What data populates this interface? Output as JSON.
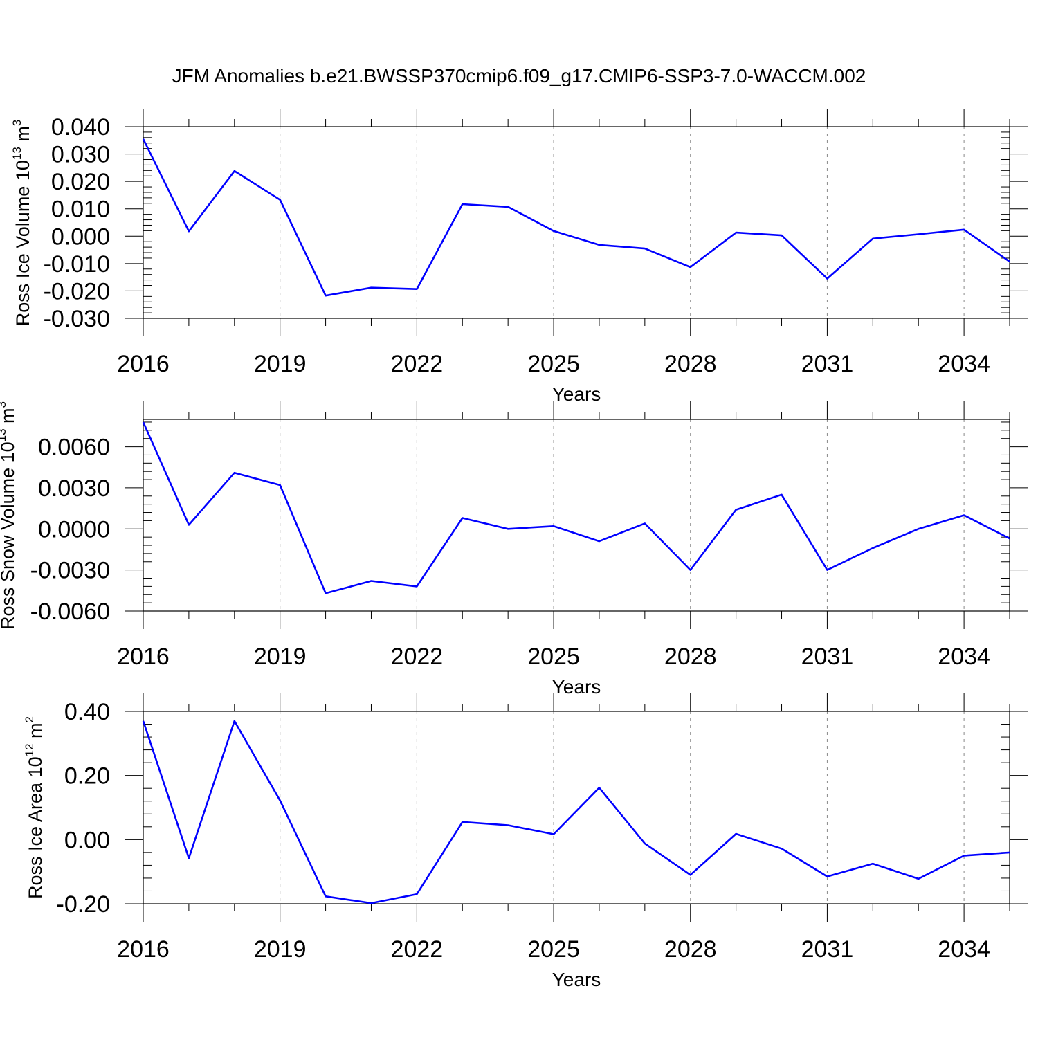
{
  "figure": {
    "title": "JFM Anomalies b.e21.BWSSP370cmip6.f09_g17.CMIP6-SSP3-7.0-WACCM.002"
  },
  "chart_data": [
    {
      "type": "line",
      "title": "JFM Anomalies b.e21.BWSSP370cmip6.f09_g17.CMIP6-SSP3-7.0-WACCM.002",
      "xlabel": "Years",
      "ylabel": {
        "text": "Ross Ice Volume 10",
        "sup": "13",
        "unit": " m",
        "unit_sup": "3"
      },
      "x": [
        2016,
        2017,
        2018,
        2019,
        2020,
        2021,
        2022,
        2023,
        2024,
        2025,
        2026,
        2027,
        2028,
        2029,
        2030,
        2031,
        2032,
        2033,
        2034,
        2035
      ],
      "series": [
        {
          "name": "Ross Ice Volume",
          "color": "#0000ff",
          "values": [
            0.0355,
            0.0018,
            0.0238,
            0.0133,
            -0.0217,
            -0.0188,
            -0.0193,
            0.0117,
            0.0107,
            0.0019,
            -0.0032,
            -0.0045,
            -0.0113,
            0.0013,
            0.0003,
            -0.0155,
            -0.0009,
            0.0007,
            0.0024,
            -0.0093
          ]
        }
      ],
      "xlim": [
        2016,
        2035
      ],
      "ylim": [
        -0.03,
        0.04
      ],
      "yticks": [
        0.04,
        0.03,
        0.02,
        0.01,
        0.0,
        -0.01,
        -0.02,
        -0.03
      ],
      "ytick_labels": [
        "0.040",
        "0.030",
        "0.020",
        "0.010",
        "0.000",
        "-0.010",
        "-0.020",
        "-0.030"
      ],
      "xticks": [
        2016,
        2019,
        2022,
        2025,
        2028,
        2031,
        2034
      ],
      "xtick_labels": [
        "2016",
        "2019",
        "2022",
        "2025",
        "2028",
        "2031",
        "2034"
      ],
      "grid": "vertical dashed"
    },
    {
      "type": "line",
      "xlabel": "Years",
      "ylabel": {
        "text": "Ross Snow Volume 10",
        "sup": "13",
        "unit": " m",
        "unit_sup": "3"
      },
      "x": [
        2016,
        2017,
        2018,
        2019,
        2020,
        2021,
        2022,
        2023,
        2024,
        2025,
        2026,
        2027,
        2028,
        2029,
        2030,
        2031,
        2032,
        2033,
        2034,
        2035
      ],
      "series": [
        {
          "name": "Ross Snow Volume",
          "color": "#0000ff",
          "values": [
            0.0078,
            0.0003,
            0.0041,
            0.0032,
            -0.0047,
            -0.0038,
            -0.0042,
            0.0008,
            0.0,
            0.0002,
            -0.0009,
            0.0004,
            -0.003,
            0.0014,
            0.0025,
            -0.003,
            -0.0014,
            0.0,
            0.001,
            -0.0007
          ]
        }
      ],
      "xlim": [
        2016,
        2035
      ],
      "ylim": [
        -0.006,
        0.008
      ],
      "yticks": [
        0.006,
        0.003,
        0.0,
        -0.003,
        -0.006
      ],
      "ytick_labels": [
        "0.0060",
        "0.0030",
        "0.0000",
        "-0.0030",
        "-0.0060"
      ],
      "xticks": [
        2016,
        2019,
        2022,
        2025,
        2028,
        2031,
        2034
      ],
      "xtick_labels": [
        "2016",
        "2019",
        "2022",
        "2025",
        "2028",
        "2031",
        "2034"
      ],
      "grid": "vertical dashed"
    },
    {
      "type": "line",
      "xlabel": "Years",
      "ylabel": {
        "text": "Ross Ice Area 10",
        "sup": "12",
        "unit": " m",
        "unit_sup": "2"
      },
      "x": [
        2016,
        2017,
        2018,
        2019,
        2020,
        2021,
        2022,
        2023,
        2024,
        2025,
        2026,
        2027,
        2028,
        2029,
        2030,
        2031,
        2032,
        2033,
        2034,
        2035
      ],
      "series": [
        {
          "name": "Ross Ice Area",
          "color": "#0000ff",
          "values": [
            0.37,
            -0.058,
            0.37,
            0.122,
            -0.177,
            -0.198,
            -0.17,
            0.055,
            0.045,
            0.017,
            0.162,
            -0.012,
            -0.11,
            0.018,
            -0.028,
            -0.115,
            -0.075,
            -0.122,
            -0.05,
            -0.04
          ]
        }
      ],
      "xlim": [
        2016,
        2035
      ],
      "ylim": [
        -0.2,
        0.4
      ],
      "yticks": [
        0.4,
        0.2,
        0.0,
        -0.2
      ],
      "ytick_labels": [
        "0.40",
        "0.20",
        "0.00",
        "-0.20"
      ],
      "xticks": [
        2016,
        2019,
        2022,
        2025,
        2028,
        2031,
        2034
      ],
      "xtick_labels": [
        "2016",
        "2019",
        "2022",
        "2025",
        "2028",
        "2031",
        "2034"
      ],
      "grid": "vertical dashed"
    }
  ]
}
